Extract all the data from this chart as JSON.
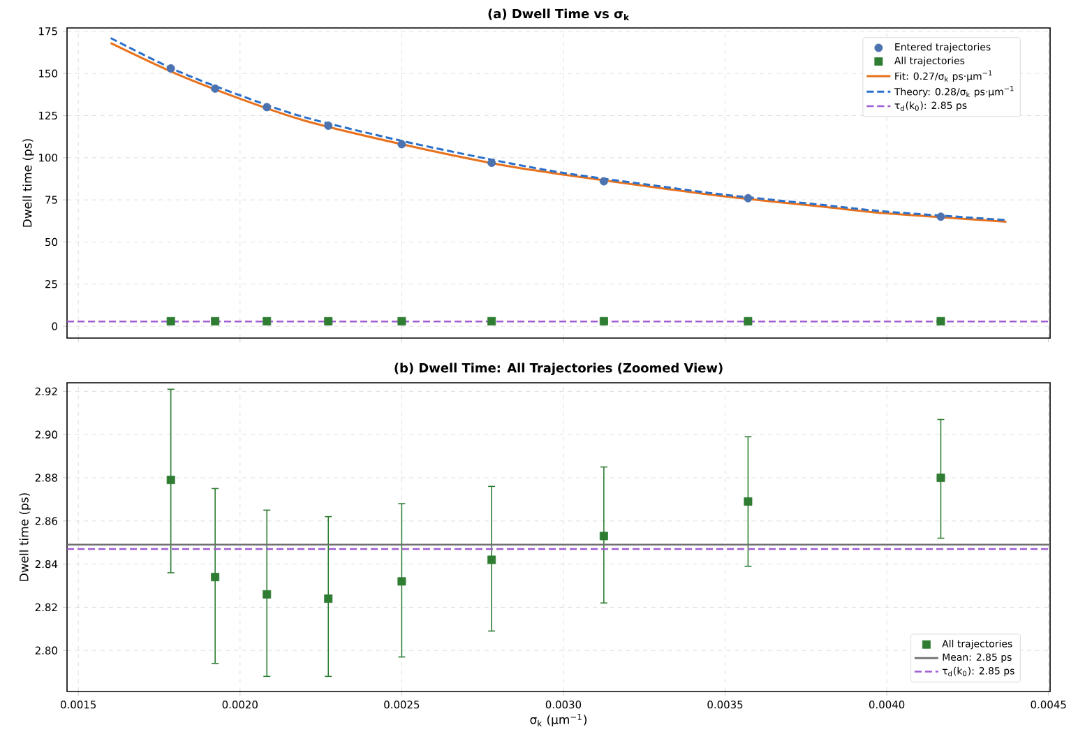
{
  "chart_data": [
    {
      "type": "scatter",
      "title": "(a) Dwell Time vs σ$_{k}$",
      "ylabel": "Dwell time (ps)",
      "xlim": [
        0.001465,
        0.004505
      ],
      "ylim": [
        -7,
        177
      ],
      "xticks": [
        {
          "value": 0.0015,
          "label": null
        },
        {
          "value": 0.002,
          "label": null
        },
        {
          "value": 0.0025,
          "label": null
        },
        {
          "value": 0.003,
          "label": null
        },
        {
          "value": 0.0035,
          "label": null
        },
        {
          "value": 0.004,
          "label": null
        },
        {
          "value": 0.0045,
          "label": null
        }
      ],
      "yticks": [
        0,
        25,
        50,
        75,
        100,
        125,
        150,
        175
      ],
      "tick_labels": "y",
      "grid": true,
      "legend": "top right",
      "series": [
        {
          "name": "Entered trajectories",
          "marker": "circle",
          "color": "#4c72b0",
          "x": [
            0.001786,
            0.001923,
            0.002083,
            0.002273,
            0.0025,
            0.002778,
            0.003125,
            0.003571,
            0.004167
          ],
          "values": [
            153,
            141,
            130,
            119,
            108,
            97,
            86,
            76,
            65
          ]
        },
        {
          "name": "All trajectories",
          "marker": "square",
          "color": "#2e7d32",
          "x": [
            0.001786,
            0.001923,
            0.002083,
            0.002273,
            0.0025,
            0.002778,
            0.003125,
            0.003571,
            0.004167
          ],
          "values": [
            3,
            3,
            3,
            3,
            3,
            3,
            3,
            3,
            3
          ]
        },
        {
          "name": "Fit: 0.27/σ$_{k}$ ps·μm$^{−1}$",
          "type": "line",
          "marker": "none",
          "line_style": "solid",
          "color": "#e8711c",
          "x": [
            0.0016,
            0.0018,
            0.002,
            0.0022,
            0.0025,
            0.0028,
            0.003,
            0.0033,
            0.0035,
            0.0038,
            0.004,
            0.00437
          ],
          "values": [
            168,
            150,
            135,
            122,
            108,
            96,
            90,
            82,
            77,
            71,
            67,
            62
          ]
        },
        {
          "name": "Theory: 0.28/σ$_{k}$ ps·μm$^{−1}$",
          "type": "line",
          "marker": "none",
          "line_style": "dashed",
          "color": "#2a6fc9",
          "x": [
            0.0016,
            0.0018,
            0.002,
            0.0022,
            0.0025,
            0.0028,
            0.003,
            0.0033,
            0.0035,
            0.0038,
            0.004,
            0.00437
          ],
          "values": [
            171,
            152,
            137,
            124,
            110,
            98,
            91,
            83,
            78,
            72,
            68,
            63
          ]
        }
      ],
      "ref_lines": [
        {
          "axis": "y",
          "value": 2.85,
          "label": "τ$_{d}$(k$_{0}$): 2.85 ps",
          "color": "#a05cd0",
          "line_style": "dashed"
        }
      ]
    },
    {
      "type": "scatter",
      "title": "(b) Dwell Time: All Trajectories (Zoomed View)",
      "xlabel": "σ$_{k}$ (μm$^{−1}$)",
      "ylabel": "Dwell time (ps)",
      "xlim": [
        0.001465,
        0.004505
      ],
      "ylim": [
        2.781,
        2.924
      ],
      "xticks": [
        {
          "value": 0.0015,
          "label": "0.0015"
        },
        {
          "value": 0.002,
          "label": "0.0020"
        },
        {
          "value": 0.0025,
          "label": "0.0025"
        },
        {
          "value": 0.003,
          "label": "0.0030"
        },
        {
          "value": 0.0035,
          "label": "0.0035"
        },
        {
          "value": 0.004,
          "label": "0.0040"
        },
        {
          "value": 0.0045,
          "label": "0.0045"
        }
      ],
      "yticks": [
        {
          "value": 2.8,
          "label": "2.80"
        },
        {
          "value": 2.82,
          "label": "2.82"
        },
        {
          "value": 2.84,
          "label": "2.84"
        },
        {
          "value": 2.86,
          "label": "2.86"
        },
        {
          "value": 2.88,
          "label": "2.88"
        },
        {
          "value": 2.9,
          "label": "2.90"
        },
        {
          "value": 2.92,
          "label": "2.92"
        }
      ],
      "grid": true,
      "legend": "bottom right",
      "series": [
        {
          "name": "All trajectories",
          "marker": "square",
          "color": "#2e7d32",
          "x": [
            0.001786,
            0.001923,
            0.002083,
            0.002273,
            0.0025,
            0.002778,
            0.003125,
            0.003571,
            0.004167
          ],
          "values": [
            2.879,
            2.834,
            2.826,
            2.824,
            2.832,
            2.842,
            2.853,
            2.869,
            2.88
          ],
          "errors": [
            [
              2.836,
              2.921
            ],
            [
              2.794,
              2.875
            ],
            [
              2.788,
              2.865
            ],
            [
              2.788,
              2.862
            ],
            [
              2.797,
              2.868
            ],
            [
              2.809,
              2.876
            ],
            [
              2.822,
              2.885
            ],
            [
              2.839,
              2.899
            ],
            [
              2.852,
              2.907
            ]
          ]
        }
      ],
      "ref_lines": [
        {
          "axis": "y",
          "value": 2.849,
          "label": "Mean: 2.85 ps",
          "color": "#707070",
          "line_style": "solid"
        },
        {
          "axis": "y",
          "value": 2.847,
          "label": "τ$_{d}$(k$_{0}$): 2.85 ps",
          "color": "#a05cd0",
          "line_style": "dashed"
        }
      ]
    }
  ]
}
